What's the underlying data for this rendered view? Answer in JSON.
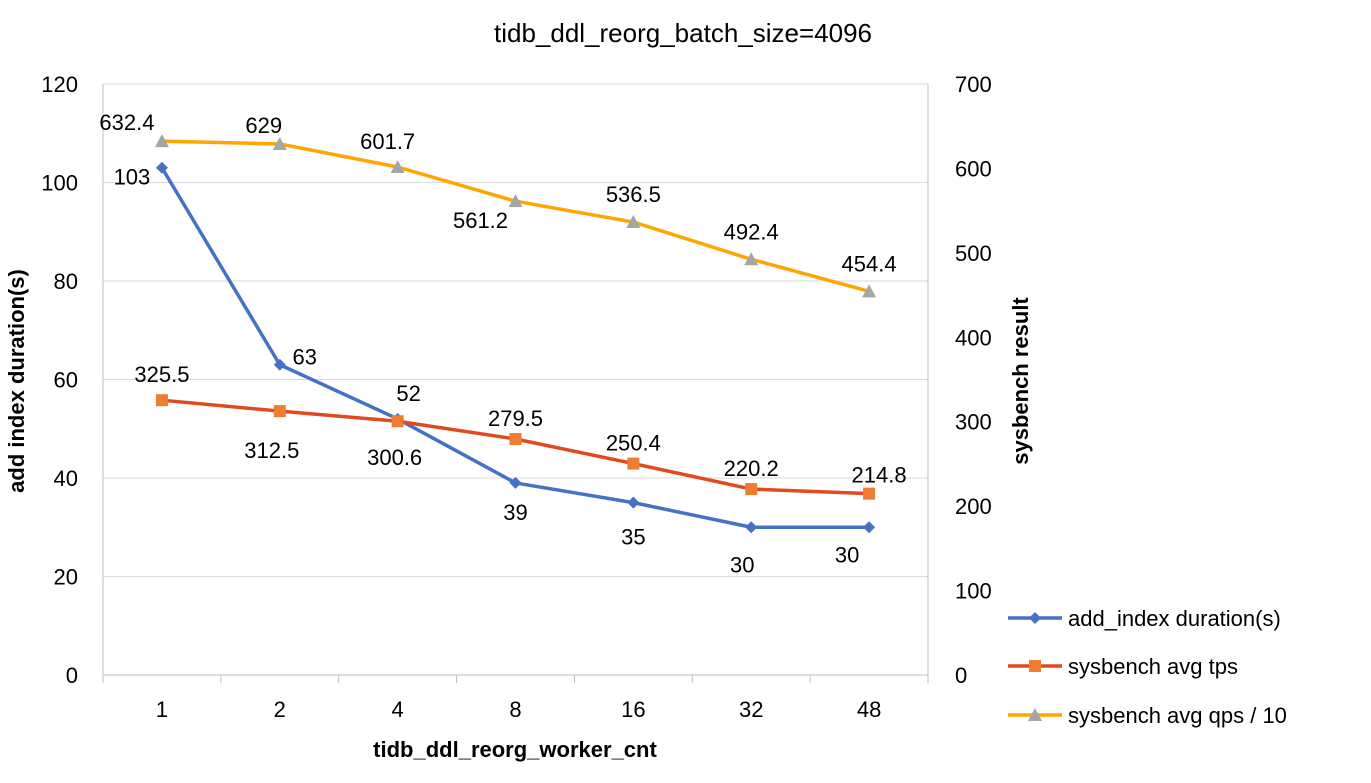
{
  "chart_data": {
    "type": "line",
    "title": "tidb_ddl_reorg_batch_size=4096",
    "xlabel": "tidb_ddl_reorg_worker_cnt",
    "ylabel": "add index duration(s)",
    "y2label": "sysbench result",
    "categories": [
      "1",
      "2",
      "4",
      "8",
      "16",
      "32",
      "48"
    ],
    "ylim": [
      0,
      120
    ],
    "yticks": [
      0,
      20,
      40,
      60,
      80,
      100,
      120
    ],
    "y2lim": [
      0,
      700
    ],
    "y2ticks": [
      0,
      100,
      200,
      300,
      400,
      500,
      600,
      700
    ],
    "grid": true,
    "legend_position": "right",
    "series": [
      {
        "name": "add_index duration(s)",
        "axis": "left",
        "marker": "diamond",
        "color": "#4472C4",
        "values": [
          103,
          63,
          52,
          39,
          35,
          30,
          30
        ],
        "labels": [
          "103",
          "63",
          "52",
          "39",
          "35",
          "30",
          "30"
        ]
      },
      {
        "name": "sysbench avg tps",
        "axis": "right",
        "marker": "square",
        "color": "#E04A1F",
        "marker_color": "#ED7D31",
        "values": [
          325.5,
          312.5,
          300.6,
          279.5,
          250.4,
          220.2,
          214.8
        ],
        "labels": [
          "325.5",
          "312.5",
          "300.6",
          "279.5",
          "250.4",
          "220.2",
          "214.8"
        ]
      },
      {
        "name": "sysbench avg qps / 10",
        "axis": "right",
        "marker": "triangle",
        "color": "#FFA500",
        "marker_color": "#A5A5A5",
        "values": [
          632.4,
          629,
          601.7,
          561.2,
          536.5,
          492.4,
          454.4
        ],
        "labels": [
          "632.4",
          "629",
          "601.7",
          "561.2",
          "536.5",
          "492.4",
          "454.4"
        ]
      }
    ]
  }
}
